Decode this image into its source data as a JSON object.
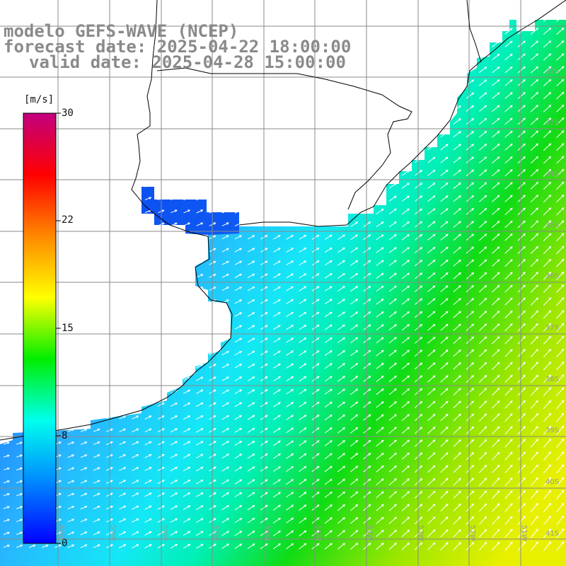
{
  "title": {
    "line1": "modelo GEFS-WAVE (NCEP)",
    "line2": "forecast date: 2025-04-22 18:00:00",
    "line3": "valid date: 2025-04-28 15:00:00"
  },
  "colorbar": {
    "unit": "[m/s]",
    "ticks": [
      "30",
      "22",
      "15",
      "8",
      "0"
    ],
    "colors": [
      "#c2007f",
      "#ff0000",
      "#ff8800",
      "#ffff00",
      "#00ee00",
      "#00ffee",
      "#0088ff",
      "#0000ff"
    ]
  },
  "map": {
    "lat_labels": [
      "32S",
      "33S",
      "34S",
      "35S",
      "36S",
      "37S",
      "38S",
      "39S",
      "40S",
      "41S"
    ],
    "lon_labels": [
      "60W",
      "59W",
      "58W",
      "57W",
      "56W",
      "55W",
      "54W",
      "53W",
      "52W",
      "51W"
    ],
    "field_colors": {
      "deep_blue": "#0a46f0",
      "blue": "#1e78ff",
      "sky": "#28b4ff",
      "cyan": "#14e8f5",
      "aqua": "#00f0b4",
      "green": "#10dc14",
      "lime": "#9be600",
      "yellow": "#e8f000",
      "land": "#ffffff",
      "grid": "#8a8a8a",
      "coast": "#000000",
      "arrow": "#ffffff"
    }
  }
}
